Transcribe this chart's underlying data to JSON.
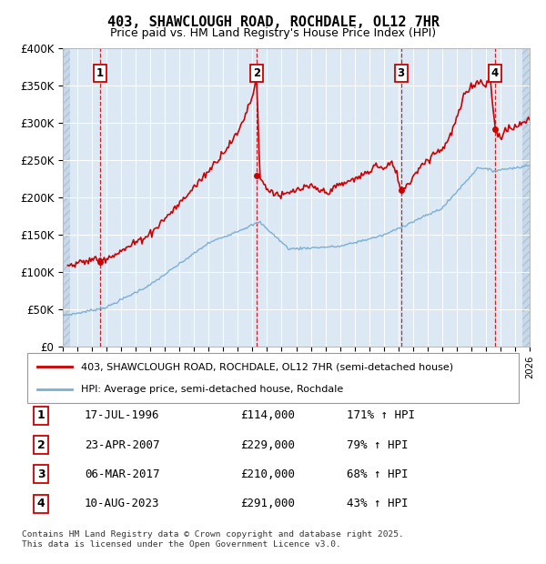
{
  "title": "403, SHAWCLOUGH ROAD, ROCHDALE, OL12 7HR",
  "subtitle": "Price paid vs. HM Land Registry's House Price Index (HPI)",
  "sales": [
    {
      "date": 1996.54,
      "price": 114000,
      "label": "1"
    },
    {
      "date": 2007.31,
      "price": 229000,
      "label": "2"
    },
    {
      "date": 2017.18,
      "price": 210000,
      "label": "3"
    },
    {
      "date": 2023.61,
      "price": 291000,
      "label": "4"
    }
  ],
  "sale_dates_label": [
    "17-JUL-1996",
    "23-APR-2007",
    "06-MAR-2017",
    "10-AUG-2023"
  ],
  "sale_prices_label": [
    "£114,000",
    "£229,000",
    "£210,000",
    "£291,000"
  ],
  "sale_hpi_label": [
    "171% ↑ HPI",
    "79% ↑ HPI",
    "68% ↑ HPI",
    "43% ↑ HPI"
  ],
  "xmin": 1994,
  "xmax": 2026,
  "ymin": 0,
  "ymax": 400000,
  "yticks": [
    0,
    50000,
    100000,
    150000,
    200000,
    250000,
    300000,
    350000,
    400000
  ],
  "ytick_labels": [
    "£0",
    "£50K",
    "£100K",
    "£150K",
    "£200K",
    "£250K",
    "£300K",
    "£350K",
    "£400K"
  ],
  "property_line_color": "#cc0000",
  "hpi_line_color": "#7bafd4",
  "sale_marker_color": "#cc0000",
  "dashed_line_color": "#cc0000",
  "legend_property": "403, SHAWCLOUGH ROAD, ROCHDALE, OL12 7HR (semi-detached house)",
  "legend_hpi": "HPI: Average price, semi-detached house, Rochdale",
  "footer": "Contains HM Land Registry data © Crown copyright and database right 2025.\nThis data is licensed under the Open Government Licence v3.0.",
  "plot_bg_color": "#dce9f5"
}
